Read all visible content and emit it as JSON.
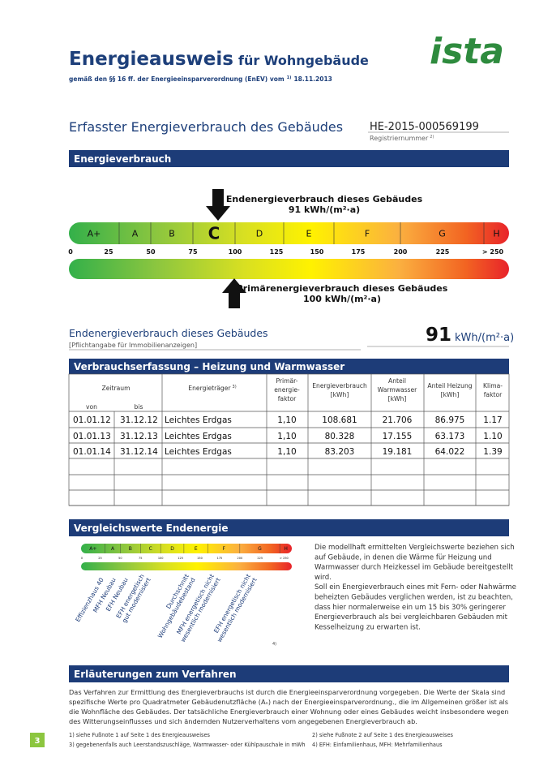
{
  "header": {
    "title": "Energieausweis",
    "title_suffix": "für Wohngebäude",
    "subtitle": "gemäß den §§ 16 ff. der Energieeinsparverordnung (EnEV) vom",
    "subtitle_sup": "1)",
    "subtitle_date": "18.11.2013",
    "logo": "ista"
  },
  "section": {
    "title": "Erfasster Energieverbrauch des Gebäudes",
    "reg_number": "HE-2015-000569199",
    "reg_label": "Registriernummer",
    "reg_sup": "2)"
  },
  "energy": {
    "band": "Energieverbrauch",
    "classes": [
      "A+",
      "A",
      "B",
      "C",
      "D",
      "E",
      "F",
      "G",
      "H"
    ],
    "scale_labels": [
      "0",
      "25",
      "50",
      "75",
      "100",
      "125",
      "150",
      "175",
      "200",
      "225",
      "> 250"
    ],
    "end_label": "Endenergieverbrauch dieses Gebäudes",
    "end_value": "91 kWh/(m²·a)",
    "primary_label": "Primärenergieverbrauch dieses Gebäudes",
    "primary_value": "100 kWh/(m²·a)",
    "summary_label": "Endenergieverbrauch dieses Gebäudes",
    "summary_note": "[Pflichtangabe für Immobilienanzeigen]",
    "summary_value": "91",
    "summary_unit": "kWh/(m²·a)"
  },
  "table": {
    "band": "Verbrauchserfassung – Heizung und Warmwasser",
    "period": "Zeitraum",
    "from": "von",
    "to": "bis",
    "carrier": "Energieträger",
    "carrier_sup": "3)",
    "primary_factor": [
      "Primär-",
      "energie-",
      "faktor"
    ],
    "consumption": [
      "Energieverbrauch",
      "[kWh]"
    ],
    "hot_water": [
      "Anteil",
      "Warmwasser",
      "[kWh]"
    ],
    "heating": [
      "Anteil Heizung",
      "[kWh]"
    ],
    "climate": [
      "Klima-",
      "faktor"
    ],
    "rows": [
      [
        "01.01.12",
        "31.12.12",
        "Leichtes Erdgas",
        "1,10",
        "108.681",
        "21.706",
        "86.975",
        "1.17"
      ],
      [
        "01.01.13",
        "31.12.13",
        "Leichtes Erdgas",
        "1,10",
        "80.328",
        "17.155",
        "63.173",
        "1.10"
      ],
      [
        "01.01.14",
        "31.12.14",
        "Leichtes Erdgas",
        "1,10",
        "83.203",
        "19.181",
        "64.022",
        "1.39"
      ]
    ]
  },
  "comparison": {
    "band": "Vergleichswerte Endenergie",
    "labels": [
      [
        "Effizienzhaus 40"
      ],
      [
        "MFH Neubau"
      ],
      [
        "EFH Neubau"
      ],
      [
        "EFH energetisch",
        "gut modernisiert"
      ],
      [
        "Durchschnitt",
        "Wohngebäudebestand"
      ],
      [
        "MFH energetisch nicht",
        "wesentlich modernisiert"
      ],
      [
        "EFH energetisch nicht",
        "wesentlich modernisiert"
      ]
    ],
    "footnote_mark": "4)",
    "text": [
      "Die modellhaft ermittelten Vergleichswerte beziehen sich",
      "auf Gebäude, in denen die Wärme für Heizung und",
      "Warmwasser durch Heizkessel im Gebäude bereitgestellt",
      "wird.",
      "Soll ein Energieverbrauch eines mit Fern- oder Nahwärme",
      "beheizten Gebäudes verglichen werden, ist zu beachten,",
      "dass hier normalerweise ein um 15 bis 30% geringerer",
      "Energieverbrauch als bei vergleichbaren Gebäuden mit",
      "Kesselheizung zu erwarten ist."
    ]
  },
  "explanation": {
    "band": "Erläuterungen zum Verfahren",
    "text": [
      "Das Verfahren zur Ermittlung des Energieverbrauchs ist durch die Energieeinsparverordnung vorgegeben. Die Werte der Skala sind",
      "spezifische Werte pro Quadratmeter Gebäudenutzfläche (Aₙ) nach der Energieeinsparverordnung., die im Allgemeinen größer ist als",
      "die Wohnfläche des Gebäudes. Der tatsächliche Energieverbrauch einer Wohnung oder eines Gebäudes weicht insbesondere wegen",
      "des Witterungseinflusses und sich ändernden Nutzerverhaltens vom angegebenen Energieverbrauch ab."
    ]
  },
  "footnotes": [
    "1) siehe Fußnote 1 auf Seite 1 des Energieausweises",
    "2) siehe Fußnote 2 auf Seite 1 des Energieausweises",
    "3) gegebenenfalls auch Leerstandszuschläge, Warmwasser- oder Kühlpauschale in mWh",
    "4) EFH: Einfamilienhaus, MFH: Mehrfamilienhaus"
  ],
  "page_number": "3"
}
